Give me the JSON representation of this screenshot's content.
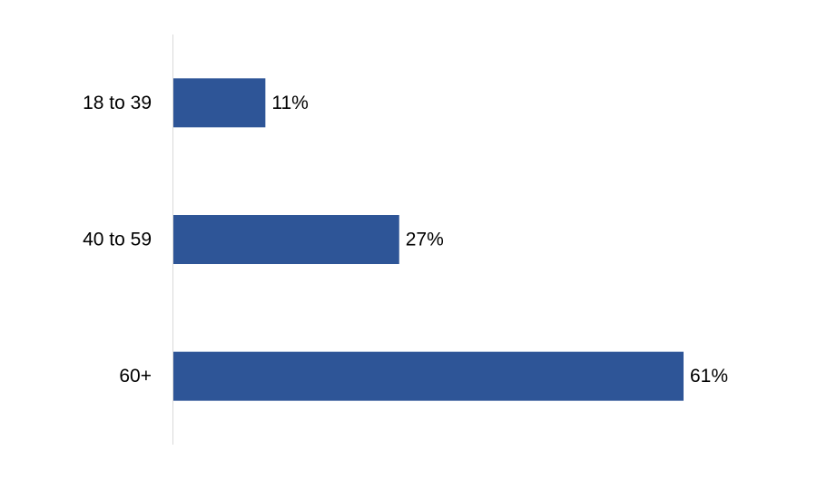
{
  "chart_data": {
    "type": "bar",
    "orientation": "horizontal",
    "categories": [
      "18 to 39",
      "40 to 59",
      "60+"
    ],
    "values": [
      11,
      27,
      61
    ],
    "data_labels": [
      "11%",
      "27%",
      "61%"
    ],
    "title": "",
    "xlabel": "",
    "ylabel": "",
    "xlim": [
      0,
      61
    ],
    "grid": false,
    "legend": "none",
    "bar_color": "#2E5597",
    "axis_color": "#D9D9D9"
  }
}
